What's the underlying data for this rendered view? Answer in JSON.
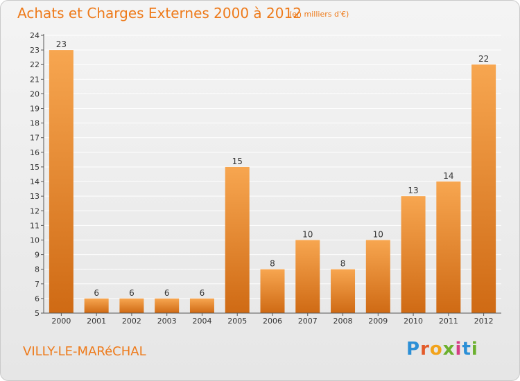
{
  "header": {
    "title": "Achats et Charges Externes 2000 à 2012",
    "subtitle": "(en milliers d'€)"
  },
  "footer": {
    "place": "VILLY-LE-MARéCHAL",
    "logo_text": "Proxiti"
  },
  "colors": {
    "bar_top": "#f7a650",
    "bar_bottom": "#cf6a14",
    "title": "#ee7a1a",
    "grid": "#ffffff"
  },
  "chart_data": {
    "type": "bar",
    "title": "Achats et Charges Externes 2000 à 2012",
    "subtitle": "(en milliers d'€)",
    "categories": [
      "2000",
      "2001",
      "2002",
      "2003",
      "2004",
      "2005",
      "2006",
      "2007",
      "2008",
      "2009",
      "2010",
      "2011",
      "2012"
    ],
    "values": [
      23,
      6,
      6,
      6,
      6,
      15,
      8,
      10,
      8,
      10,
      13,
      14,
      22
    ],
    "ylim": [
      5,
      24
    ],
    "yticks": [
      5,
      6,
      7,
      8,
      9,
      10,
      11,
      12,
      13,
      14,
      15,
      16,
      17,
      18,
      19,
      20,
      21,
      22,
      23,
      24
    ],
    "grid": true,
    "legend": "none"
  }
}
